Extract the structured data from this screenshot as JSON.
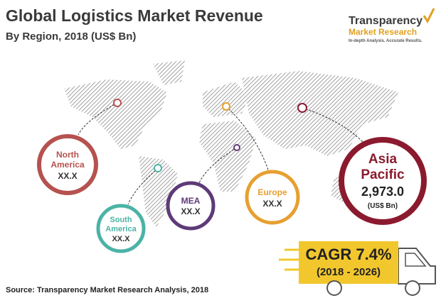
{
  "header": {
    "title": "Global Logistics Market Revenue",
    "subtitle": "By Region, 2018 (US$ Bn)"
  },
  "logo": {
    "name": "Transparency",
    "name2": "Market Research",
    "tagline": "In-depth Analysis. Accurate Results."
  },
  "regions": [
    {
      "name_lines": [
        "North",
        "America"
      ],
      "value": "XX.X"
    },
    {
      "name_lines": [
        "South",
        "America"
      ],
      "value": "XX.X"
    },
    {
      "name_lines": [
        "MEA"
      ],
      "value": "XX.X"
    },
    {
      "name_lines": [
        "Europe"
      ],
      "value": "XX.X"
    },
    {
      "name_lines": [
        "Asia",
        "Pacific"
      ],
      "value": "2,973.0",
      "unit": "(US$ Bn)"
    }
  ],
  "cagr": {
    "label": "CAGR 7.4%",
    "period": "(2018 - 2026)"
  },
  "source": "Source: Transparency Market Research Analysis, 2018"
}
